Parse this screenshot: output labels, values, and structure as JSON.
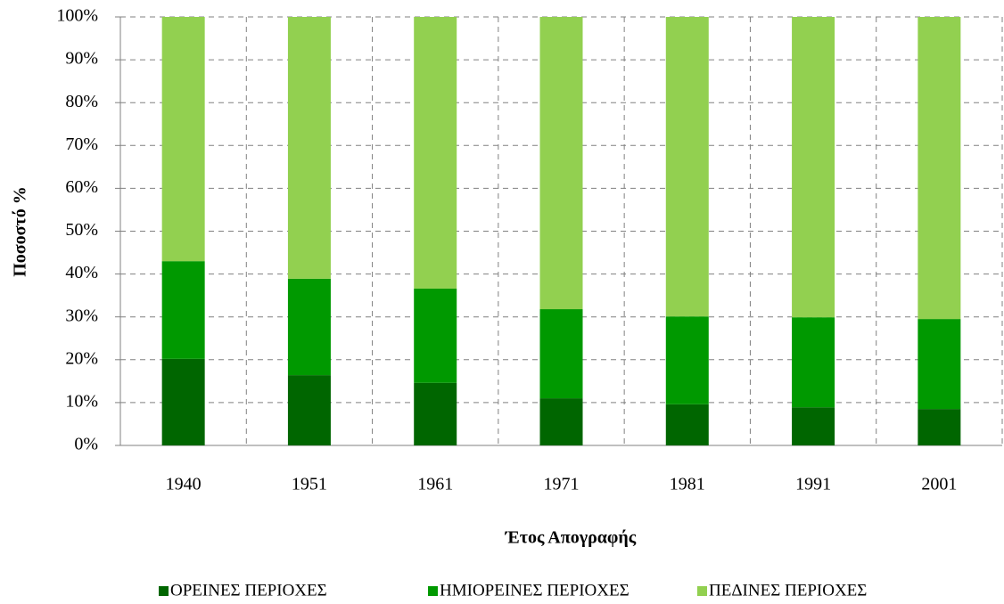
{
  "chart_data": {
    "type": "bar",
    "stacked": true,
    "x_label": "Έτος Απογραφής",
    "y_label": "Ποσοστό  %",
    "categories": [
      "1940",
      "1951",
      "1961",
      "1971",
      "1981",
      "1991",
      "2001"
    ],
    "series": [
      {
        "name": "ΟΡΕΙΝΕΣ ΠΕΡΙΟΧΕΣ",
        "color": "#006600",
        "values": [
          20.2,
          16.4,
          14.6,
          11.0,
          9.6,
          8.9,
          8.5
        ]
      },
      {
        "name": "ΗΜΙΟΡΕΙΝΕΣ ΠΕΡΙΟΧΕΣ",
        "color": "#009900",
        "values": [
          22.8,
          22.5,
          22.0,
          20.8,
          20.5,
          21.0,
          21.0
        ]
      },
      {
        "name": "ΠΕΔΙΝΕΣ ΠΕΡΙΟΧΕΣ",
        "color": "#92d050",
        "values": [
          57.0,
          61.1,
          63.4,
          68.2,
          69.9,
          70.1,
          70.5
        ]
      }
    ],
    "ylim": [
      0,
      100
    ],
    "yticks": [
      {
        "value": 0,
        "label": "0%"
      },
      {
        "value": 10,
        "label": "10%"
      },
      {
        "value": 20,
        "label": "20%"
      },
      {
        "value": 30,
        "label": "30%"
      },
      {
        "value": 40,
        "label": "40%"
      },
      {
        "value": 50,
        "label": "50%"
      },
      {
        "value": 60,
        "label": "60%"
      },
      {
        "value": 70,
        "label": "70%"
      },
      {
        "value": 80,
        "label": "80%"
      },
      {
        "value": 90,
        "label": "90%"
      },
      {
        "value": 100,
        "label": "100%"
      }
    ],
    "grid": true,
    "legend": "bottom"
  }
}
